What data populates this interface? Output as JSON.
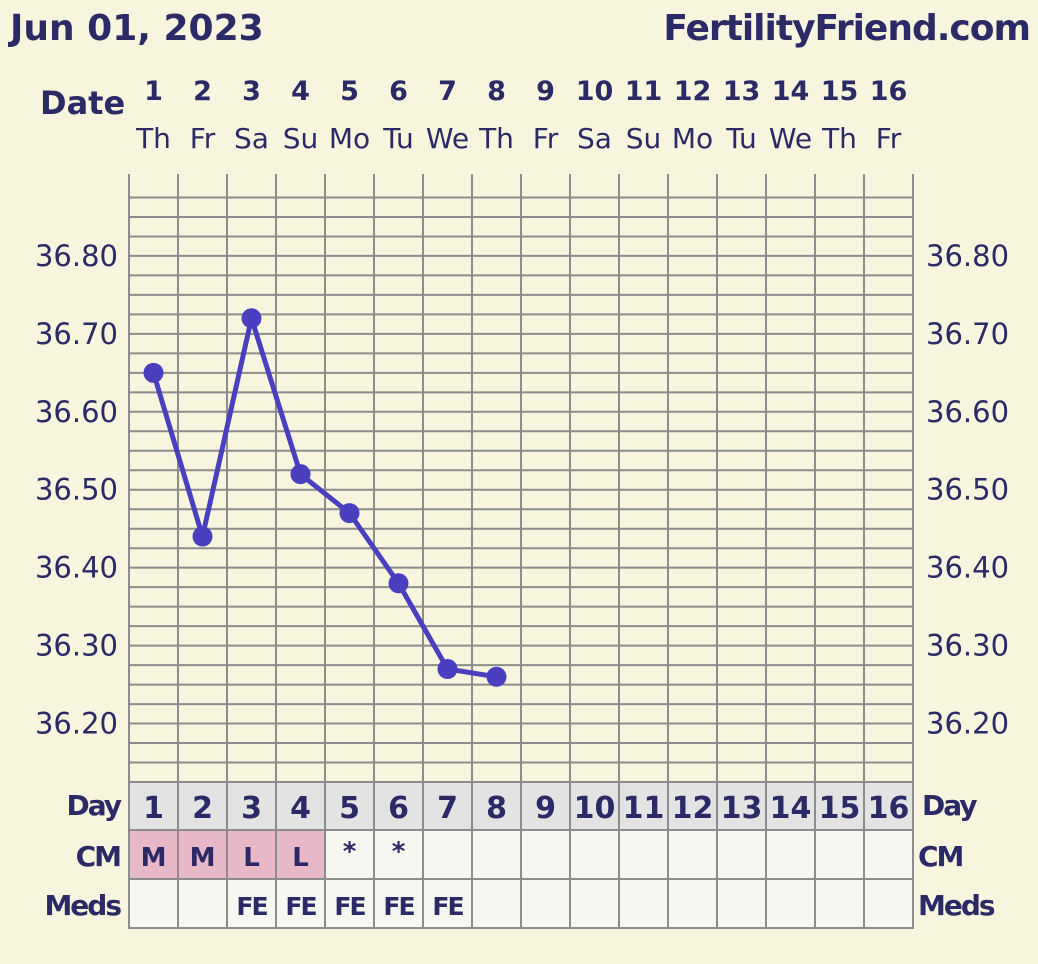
{
  "header": {
    "date_title": "Jun 01, 2023",
    "site_name": "FertilityFriend.com",
    "date_row_label": "Date"
  },
  "colors": {
    "background": "#f7f5de",
    "text": "#2b2a66",
    "grid": "#8c8c8c",
    "line": "#4a3fbf",
    "cm_highlight": "#e6b8c8",
    "day_row": "#e3e3e3",
    "cell": "#f7f7f2"
  },
  "chart_data": {
    "type": "line",
    "x": [
      1,
      2,
      3,
      4,
      5,
      6,
      7,
      8,
      9,
      10,
      11,
      12,
      13,
      14,
      15,
      16
    ],
    "dates": [
      "1",
      "2",
      "3",
      "4",
      "5",
      "6",
      "7",
      "8",
      "9",
      "10",
      "11",
      "12",
      "13",
      "14",
      "15",
      "16"
    ],
    "weekdays": [
      "Th",
      "Fr",
      "Sa",
      "Su",
      "Mo",
      "Tu",
      "We",
      "Th",
      "Fr",
      "Sa",
      "Su",
      "Mo",
      "Tu",
      "We",
      "Th",
      "Fr"
    ],
    "series": [
      {
        "values": [
          36.65,
          36.44,
          36.72,
          36.52,
          36.47,
          36.38,
          36.27,
          36.26,
          null,
          null,
          null,
          null,
          null,
          null,
          null,
          null
        ]
      }
    ],
    "y_ticks": [
      "36.80",
      "36.70",
      "36.60",
      "36.50",
      "36.40",
      "36.30",
      "36.20"
    ],
    "y_tick_values": [
      36.8,
      36.7,
      36.6,
      36.5,
      36.4,
      36.3,
      36.2
    ],
    "ylim": [
      36.125,
      36.9
    ],
    "grid": true
  },
  "table": {
    "day_label": "Day",
    "cm_label": "CM",
    "meds_label": "Meds",
    "days": [
      "1",
      "2",
      "3",
      "4",
      "5",
      "6",
      "7",
      "8",
      "9",
      "10",
      "11",
      "12",
      "13",
      "14",
      "15",
      "16"
    ],
    "cm": [
      "M",
      "M",
      "L",
      "L",
      "*",
      "*",
      "",
      "",
      "",
      "",
      "",
      "",
      "",
      "",
      "",
      ""
    ],
    "cm_highlight": [
      true,
      true,
      true,
      true,
      false,
      false,
      false,
      false,
      false,
      false,
      false,
      false,
      false,
      false,
      false,
      false
    ],
    "meds": [
      "",
      "",
      "FE",
      "FE",
      "FE",
      "FE",
      "FE",
      "",
      "",
      "",
      "",
      "",
      "",
      "",
      "",
      ""
    ]
  }
}
